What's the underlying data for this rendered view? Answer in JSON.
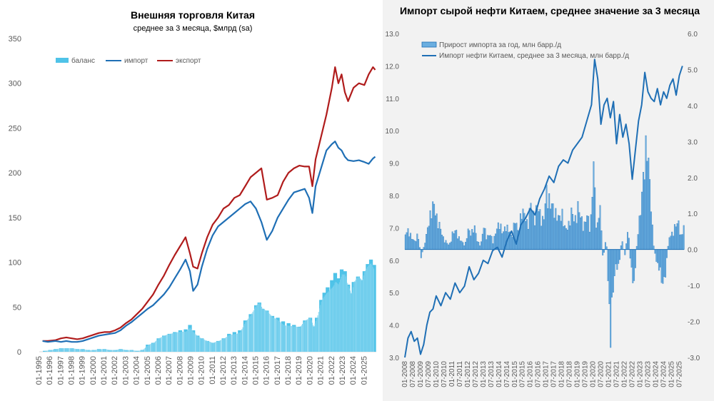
{
  "chart_data": [
    {
      "type": "line",
      "title": "Внешняя торговля Китая",
      "subtitle": "среднее за 3 месяца, $млрд (sa)",
      "ylim": [
        0,
        350
      ],
      "yticks": [
        0,
        50,
        100,
        150,
        200,
        250,
        300,
        350
      ],
      "xlim": [
        1995,
        2026.1
      ],
      "xtick_labels": [
        "01-1995",
        "01-1996",
        "01-1997",
        "01-1998",
        "01-1999",
        "01-2000",
        "01-2001",
        "01-2002",
        "01-2003",
        "01-2004",
        "01-2005",
        "01-2006",
        "01-2007",
        "01-2008",
        "01-2009",
        "01-2010",
        "01-2011",
        "01-2012",
        "01-2013",
        "01-2014",
        "01-2015",
        "01-2016",
        "01-2017",
        "01-2018",
        "01-2019",
        "01-2020",
        "01-2021",
        "01-2022",
        "01-2023",
        "01-2024",
        "01-2025"
      ],
      "legend": [
        "баланс",
        "импорт",
        "экспорт"
      ],
      "legend_position": "top-left",
      "colors": {
        "balance": "#4fc3e8",
        "import": "#1f6fb5",
        "export": "#b01c1c"
      },
      "series": [
        {
          "name": "экспорт",
          "x": [
            1995.3,
            1995.8,
            1996.5,
            1997.0,
            1997.5,
            1998.0,
            1998.5,
            1999.0,
            1999.5,
            2000.0,
            2000.5,
            2001.0,
            2001.5,
            2002.0,
            2002.5,
            2003.0,
            2003.5,
            2004.0,
            2004.5,
            2005.0,
            2005.5,
            2006.0,
            2006.5,
            2007.0,
            2007.5,
            2008.0,
            2008.5,
            2008.9,
            2009.2,
            2009.6,
            2010.0,
            2010.5,
            2011.0,
            2011.5,
            2012.0,
            2012.5,
            2013.0,
            2013.5,
            2014.0,
            2014.5,
            2015.0,
            2015.5,
            2016.0,
            2016.5,
            2017.0,
            2017.5,
            2018.0,
            2018.5,
            2019.0,
            2019.5,
            2019.9,
            2020.2,
            2020.5,
            2021.0,
            2021.5,
            2022.0,
            2022.3,
            2022.6,
            2022.9,
            2023.2,
            2023.5,
            2024.0,
            2024.5,
            2025.0,
            2025.4,
            2025.8,
            2026.0
          ],
          "values": [
            12,
            12,
            13,
            15,
            16,
            15,
            14,
            15,
            17,
            19,
            21,
            22,
            22,
            24,
            27,
            32,
            36,
            42,
            48,
            56,
            64,
            75,
            85,
            97,
            108,
            118,
            128,
            110,
            95,
            93,
            110,
            128,
            142,
            150,
            160,
            164,
            172,
            175,
            185,
            195,
            200,
            205,
            170,
            172,
            175,
            190,
            200,
            205,
            208,
            207,
            207,
            185,
            215,
            240,
            265,
            295,
            318,
            300,
            310,
            290,
            280,
            295,
            300,
            298,
            310,
            318,
            315
          ]
        },
        {
          "name": "импорт",
          "x": [
            1995.3,
            1995.8,
            1996.5,
            1997.0,
            1997.5,
            1998.0,
            1998.5,
            1999.0,
            1999.5,
            2000.0,
            2000.5,
            2001.0,
            2001.5,
            2002.0,
            2002.5,
            2003.0,
            2003.5,
            2004.0,
            2004.5,
            2005.0,
            2005.5,
            2006.0,
            2006.5,
            2007.0,
            2007.5,
            2008.0,
            2008.5,
            2008.9,
            2009.2,
            2009.6,
            2010.0,
            2010.5,
            2011.0,
            2011.5,
            2012.0,
            2012.5,
            2013.0,
            2013.5,
            2014.0,
            2014.5,
            2015.0,
            2015.5,
            2016.0,
            2016.5,
            2017.0,
            2017.5,
            2018.0,
            2018.5,
            2019.0,
            2019.5,
            2019.9,
            2020.2,
            2020.5,
            2021.0,
            2021.5,
            2022.0,
            2022.3,
            2022.6,
            2022.9,
            2023.2,
            2023.5,
            2024.0,
            2024.5,
            2025.0,
            2025.4,
            2025.8,
            2026.0
          ],
          "values": [
            12,
            11,
            12,
            11,
            12,
            11,
            11,
            12,
            14,
            16,
            18,
            19,
            20,
            21,
            24,
            29,
            33,
            38,
            43,
            48,
            52,
            58,
            64,
            72,
            82,
            92,
            103,
            90,
            68,
            75,
            95,
            115,
            130,
            140,
            145,
            150,
            155,
            160,
            165,
            168,
            160,
            145,
            125,
            135,
            150,
            160,
            170,
            178,
            180,
            182,
            172,
            155,
            185,
            205,
            225,
            232,
            235,
            228,
            225,
            218,
            214,
            213,
            214,
            212,
            210,
            216,
            218
          ]
        }
      ],
      "balance": {
        "name": "баланс",
        "x": [
          1995.5,
          1996.0,
          1996.5,
          1997.0,
          1997.5,
          1998.0,
          1998.5,
          1999.0,
          1999.5,
          2000.0,
          2000.5,
          2001.0,
          2001.5,
          2002.0,
          2002.5,
          2003.0,
          2003.5,
          2004.0,
          2004.5,
          2005.0,
          2005.5,
          2006.0,
          2006.5,
          2007.0,
          2007.5,
          2008.0,
          2008.5,
          2008.9,
          2009.2,
          2009.6,
          2010.0,
          2010.5,
          2011.0,
          2011.5,
          2012.0,
          2012.5,
          2013.0,
          2013.5,
          2014.0,
          2014.5,
          2015.0,
          2015.3,
          2015.6,
          2016.0,
          2016.5,
          2017.0,
          2017.5,
          2018.0,
          2018.5,
          2019.0,
          2019.5,
          2020.0,
          2020.3,
          2020.6,
          2021.0,
          2021.3,
          2021.6,
          2022.0,
          2022.3,
          2022.6,
          2022.9,
          2023.2,
          2023.5,
          2023.8,
          2024.0,
          2024.4,
          2024.8,
          2025.0,
          2025.3,
          2025.6,
          2025.9
        ],
        "values": [
          1,
          2,
          3,
          4,
          4,
          4,
          3,
          3,
          2,
          2,
          3,
          3,
          2,
          2,
          3,
          2,
          2,
          1,
          2,
          8,
          10,
          15,
          18,
          20,
          22,
          24,
          25,
          30,
          24,
          18,
          15,
          12,
          10,
          12,
          15,
          20,
          22,
          24,
          35,
          42,
          52,
          55,
          48,
          46,
          40,
          38,
          34,
          32,
          30,
          28,
          35,
          38,
          28,
          38,
          58,
          66,
          72,
          80,
          88,
          82,
          92,
          90,
          75,
          65,
          78,
          84,
          80,
          90,
          98,
          103,
          97
        ]
      }
    },
    {
      "type": "bar+line",
      "title": "Импорт сырой нефти Китаем, среднее значение за 3 месяца",
      "ylim_left": [
        3.0,
        13.0
      ],
      "yticks_left": [
        "3.0",
        "4.0",
        "5.0",
        "6.0",
        "7.0",
        "8.0",
        "9.0",
        "10.0",
        "11.0",
        "12.0",
        "13.0"
      ],
      "ylim_right": [
        -3.0,
        6.0
      ],
      "yticks_right": [
        "-3.0",
        "-2.0",
        "-1.0",
        "0.0",
        "1.0",
        "2.0",
        "3.0",
        "4.0",
        "5.0",
        "6.0"
      ],
      "xlim": [
        2008.0,
        2025.8
      ],
      "xtick_labels": [
        "01-2008",
        "07-2008",
        "01-2009",
        "07-2009",
        "01-2010",
        "07-2010",
        "01-2011",
        "07-2011",
        "01-2012",
        "07-2012",
        "01-2013",
        "07-2013",
        "01-2014",
        "07-2014",
        "01-2015",
        "07-2015",
        "01-2016",
        "07-2016",
        "01-2017",
        "07-2017",
        "01-2018",
        "07-2018",
        "01-2019",
        "07-2019",
        "01-2020",
        "07-2020",
        "01-2021",
        "07-2021",
        "01-2022",
        "07-2022",
        "01-2023",
        "07-2023",
        "01-2024",
        "07-2024",
        "01-2025",
        "07-2025"
      ],
      "legend": [
        "Прирост импорта за год, млн барр./д",
        "Импорт нефти Китаем, среднее за 3 месяца, млн барр./д"
      ],
      "legend_position": "top-left",
      "colors": {
        "bars": "#6aaee0",
        "line": "#1f6fb5"
      },
      "series": [
        {
          "name": "Импорт нефти Китаем, среднее за 3 месяца, млн барр./д",
          "axis": "left",
          "x": [
            2008.0,
            2008.2,
            2008.4,
            2008.6,
            2008.8,
            2009.0,
            2009.2,
            2009.4,
            2009.6,
            2009.8,
            2010.0,
            2010.3,
            2010.6,
            2010.9,
            2011.2,
            2011.5,
            2011.8,
            2012.1,
            2012.4,
            2012.7,
            2013.0,
            2013.3,
            2013.6,
            2013.9,
            2014.2,
            2014.5,
            2014.8,
            2015.1,
            2015.4,
            2015.7,
            2016.0,
            2016.3,
            2016.6,
            2016.9,
            2017.2,
            2017.5,
            2017.8,
            2018.1,
            2018.4,
            2018.7,
            2019.0,
            2019.3,
            2019.6,
            2019.9,
            2020.1,
            2020.3,
            2020.5,
            2020.7,
            2020.9,
            2021.1,
            2021.3,
            2021.5,
            2021.7,
            2021.9,
            2022.1,
            2022.3,
            2022.5,
            2022.7,
            2022.9,
            2023.1,
            2023.3,
            2023.5,
            2023.7,
            2023.9,
            2024.1,
            2024.3,
            2024.5,
            2024.7,
            2024.9,
            2025.1,
            2025.3,
            2025.5,
            2025.7
          ],
          "values": [
            3.0,
            3.6,
            3.8,
            3.5,
            3.6,
            3.1,
            3.4,
            4.0,
            4.4,
            4.5,
            4.9,
            4.6,
            5.0,
            4.8,
            5.3,
            5.0,
            5.2,
            5.8,
            5.4,
            5.6,
            6.0,
            5.9,
            6.3,
            6.4,
            6.1,
            6.6,
            6.9,
            6.5,
            7.1,
            7.3,
            7.6,
            7.4,
            7.9,
            8.2,
            8.6,
            8.4,
            8.9,
            9.1,
            9.0,
            9.4,
            9.6,
            9.8,
            10.3,
            10.8,
            12.2,
            11.6,
            10.2,
            10.8,
            11.0,
            10.4,
            10.9,
            9.6,
            10.5,
            9.8,
            10.2,
            9.6,
            8.5,
            9.4,
            10.3,
            10.8,
            11.8,
            11.2,
            11.0,
            10.9,
            11.3,
            10.8,
            11.2,
            11.0,
            11.4,
            11.6,
            11.1,
            11.7,
            12.0
          ]
        },
        {
          "name": "Прирост импорта за год, млн барр./д",
          "axis": "right",
          "x": [
            2008.0,
            2008.2,
            2008.4,
            2008.6,
            2008.8,
            2009.0,
            2009.2,
            2009.4,
            2009.6,
            2009.8,
            2010.0,
            2010.2,
            2010.4,
            2010.6,
            2010.8,
            2011.0,
            2011.2,
            2011.4,
            2011.6,
            2011.8,
            2012.0,
            2012.2,
            2012.4,
            2012.6,
            2012.8,
            2013.0,
            2013.2,
            2013.4,
            2013.6,
            2013.8,
            2014.0,
            2014.2,
            2014.4,
            2014.6,
            2014.8,
            2015.0,
            2015.2,
            2015.4,
            2015.6,
            2015.8,
            2016.0,
            2016.2,
            2016.4,
            2016.6,
            2016.8,
            2017.0,
            2017.2,
            2017.4,
            2017.6,
            2017.8,
            2018.0,
            2018.2,
            2018.4,
            2018.6,
            2018.8,
            2019.0,
            2019.2,
            2019.4,
            2019.6,
            2019.8,
            2020.0,
            2020.2,
            2020.4,
            2020.6,
            2020.8,
            2021.0,
            2021.1,
            2021.2,
            2021.3,
            2021.4,
            2021.6,
            2021.8,
            2022.0,
            2022.2,
            2022.4,
            2022.6,
            2022.8,
            2023.0,
            2023.2,
            2023.4,
            2023.6,
            2023.8,
            2024.0,
            2024.2,
            2024.4,
            2024.6,
            2024.8,
            2025.0,
            2025.2,
            2025.4,
            2025.6,
            2025.8
          ],
          "values": [
            0.4,
            0.5,
            0.3,
            0.2,
            0.4,
            -0.2,
            0.1,
            0.5,
            0.9,
            1.2,
            0.8,
            0.6,
            0.3,
            0.2,
            0.1,
            0.4,
            0.5,
            0.3,
            0.2,
            0.1,
            0.5,
            0.4,
            0.6,
            0.2,
            0.1,
            0.6,
            0.3,
            0.4,
            0.2,
            0.5,
            0.7,
            0.4,
            0.6,
            0.5,
            0.3,
            0.8,
            0.4,
            1.0,
            0.9,
            0.6,
            1.2,
            0.8,
            1.1,
            0.9,
            0.7,
            1.5,
            1.2,
            1.1,
            0.9,
            0.8,
            0.9,
            0.5,
            0.6,
            1.0,
            0.7,
            1.1,
            0.8,
            0.6,
            0.9,
            0.5,
            2.2,
            0.4,
            1.2,
            -0.3,
            0.4,
            -1.6,
            -2.3,
            -1.2,
            -0.8,
            -0.4,
            -0.5,
            0.3,
            -0.2,
            0.6,
            -0.6,
            -0.9,
            0.4,
            1.0,
            2.0,
            2.8,
            1.6,
            0.2,
            -0.3,
            -0.5,
            -0.9,
            -0.6,
            0.3,
            0.4,
            0.6,
            0.7,
            0.3,
            0.7
          ]
        }
      ]
    }
  ]
}
